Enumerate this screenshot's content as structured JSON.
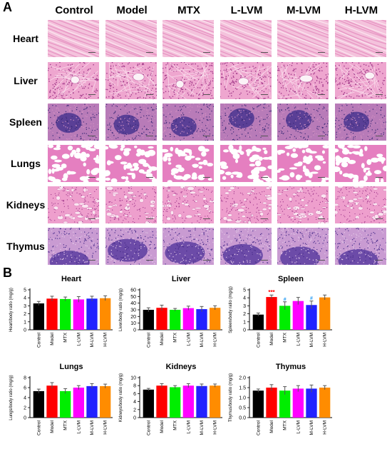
{
  "panel_a": {
    "letter": "A",
    "groups": [
      "Control",
      "Model",
      "MTX",
      "L-LVM",
      "M-LVM",
      "H-LVM"
    ],
    "organs": [
      "Heart",
      "Liver",
      "Spleen",
      "Lungs",
      "Kidneys",
      "Thymus"
    ]
  },
  "panel_b": {
    "letter": "B"
  },
  "colors": {
    "bars": [
      "#000000",
      "#ff0000",
      "#00ee00",
      "#ff00ff",
      "#2222ff",
      "#ff8c00"
    ],
    "error": "#555555",
    "significance_star": "#ff0000",
    "significance_hash": "#2a9df4"
  },
  "chart_data": [
    {
      "type": "bar",
      "title": "Heart",
      "ylabel": "Heart/body ratio (mg/g)",
      "categories": [
        "Control",
        "Model",
        "MTX",
        "L-LVM",
        "M-LVM",
        "H-LVM"
      ],
      "values": [
        3.3,
        3.9,
        3.85,
        3.8,
        3.9,
        3.95
      ],
      "errors": [
        0.25,
        0.3,
        0.25,
        0.35,
        0.3,
        0.3
      ],
      "ylim": [
        0,
        5
      ],
      "yticks": [
        0,
        1,
        2,
        3,
        4,
        5
      ],
      "annotations": [
        "",
        "",
        "",
        "",
        "",
        ""
      ]
    },
    {
      "type": "bar",
      "title": "Liver",
      "ylabel": "Liver/body ratio (mg/g)",
      "categories": [
        "Control",
        "Model",
        "MTX",
        "L-LVM",
        "M-LVM",
        "H-LVM"
      ],
      "values": [
        30,
        33,
        30,
        32.5,
        31,
        33
      ],
      "errors": [
        3,
        4,
        2,
        3,
        4,
        3
      ],
      "ylim": [
        0,
        60
      ],
      "yticks": [
        0,
        10,
        20,
        30,
        40,
        50,
        60
      ],
      "annotations": [
        "",
        "",
        "",
        "",
        "",
        ""
      ]
    },
    {
      "type": "bar",
      "title": "Spleen",
      "ylabel": "Spleen/body ratio (mg/g)",
      "categories": [
        "Control",
        "Model",
        "MTX",
        "L-LVM",
        "M-LVM",
        "H-LVM"
      ],
      "values": [
        1.9,
        4.1,
        3.0,
        3.6,
        3.1,
        4.05
      ],
      "errors": [
        0.2,
        0.25,
        0.5,
        0.45,
        0.5,
        0.3
      ],
      "ylim": [
        0,
        5
      ],
      "yticks": [
        0,
        1,
        2,
        3,
        4,
        5
      ],
      "annotations": [
        "",
        "***",
        "#",
        "",
        "#",
        ""
      ]
    },
    {
      "type": "bar",
      "title": "Lungs",
      "ylabel": "Lungs/body ratio (mg/g)",
      "categories": [
        "Control",
        "Model",
        "MTX",
        "L-LVM",
        "M-LVM",
        "H-LVM"
      ],
      "values": [
        5.3,
        6.4,
        5.3,
        6.0,
        6.3,
        6.3
      ],
      "errors": [
        0.4,
        0.6,
        0.5,
        0.4,
        0.5,
        0.4
      ],
      "ylim": [
        0,
        8
      ],
      "yticks": [
        0,
        2,
        4,
        6,
        8
      ],
      "annotations": [
        "",
        "",
        "",
        "",
        "",
        ""
      ]
    },
    {
      "type": "bar",
      "title": "Kidneys",
      "ylabel": "Kidneys/body ratio (mg/g)",
      "categories": [
        "Control",
        "Model",
        "MTX",
        "L-LVM",
        "M-LVM",
        "H-LVM"
      ],
      "values": [
        7.0,
        8.0,
        7.6,
        8.0,
        7.9,
        8.0
      ],
      "errors": [
        0.3,
        0.5,
        0.4,
        0.5,
        0.5,
        0.4
      ],
      "ylim": [
        0,
        10
      ],
      "yticks": [
        0,
        2,
        4,
        6,
        8,
        10
      ],
      "annotations": [
        "",
        "",
        "",
        "",
        "",
        ""
      ]
    },
    {
      "type": "bar",
      "title": "Thymus",
      "ylabel": "Thymus/body ratio (mg/g)",
      "categories": [
        "Control",
        "Model",
        "MTX",
        "L-LVM",
        "M-LVM",
        "H-LVM"
      ],
      "values": [
        1.35,
        1.5,
        1.35,
        1.45,
        1.45,
        1.5
      ],
      "errors": [
        0.08,
        0.15,
        0.2,
        0.15,
        0.18,
        0.1
      ],
      "ylim": [
        0,
        2.0
      ],
      "yticks": [
        0,
        0.5,
        1.0,
        1.5,
        2.0
      ],
      "yticklabels": [
        "0.0",
        "0.5",
        "1.0",
        "1.5",
        "2.0"
      ],
      "annotations": [
        "",
        "",
        "",
        "",
        "",
        ""
      ]
    }
  ]
}
